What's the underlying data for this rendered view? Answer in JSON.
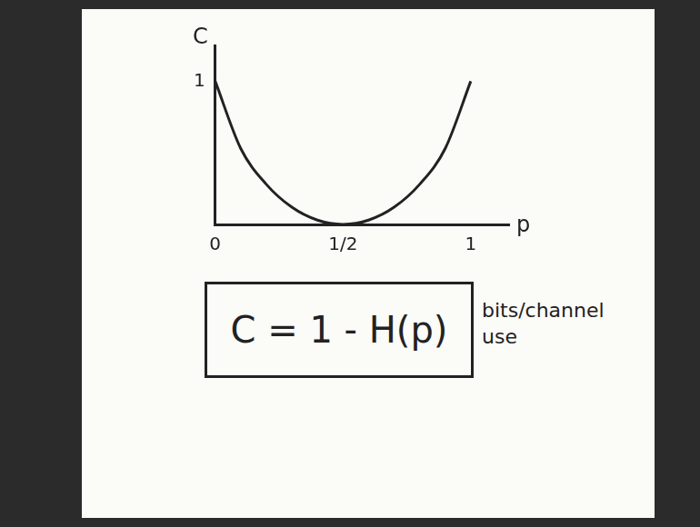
{
  "chart_data": {
    "type": "line",
    "x_label": "p",
    "y_label": "C",
    "x": [
      0,
      0.1,
      0.2,
      0.3,
      0.4,
      0.5,
      0.6,
      0.7,
      0.8,
      0.9,
      1
    ],
    "values": [
      1,
      0.53,
      0.28,
      0.12,
      0.03,
      0,
      0.03,
      0.12,
      0.28,
      0.53,
      1
    ],
    "color": "#222222",
    "xlim": [
      0,
      1.15
    ],
    "xticks": [
      0,
      {
        "value": 0.5,
        "label": "1/2"
      },
      1
    ],
    "ylim": [
      0,
      1.25
    ],
    "yticks": [
      1
    ],
    "grid": false,
    "annotations": [
      "C = 1 - H(p)",
      "bits/channel use"
    ]
  }
}
